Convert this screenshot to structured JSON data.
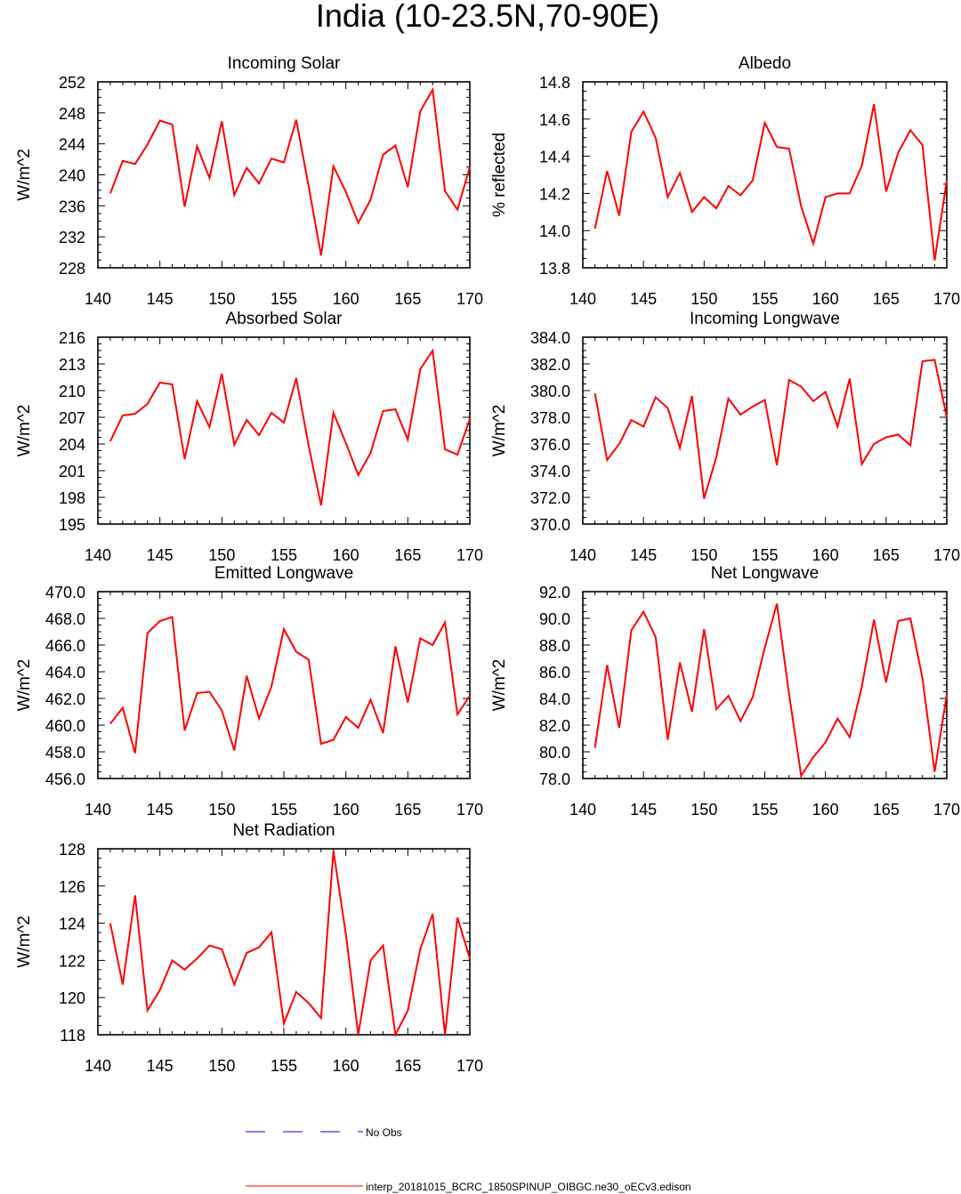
{
  "figure_title": "India (10-23.5N,70-90E)",
  "legend": {
    "obs_label": "No Obs",
    "obs_color": "#0000cc",
    "model_label": "interp_20181015_BCRC_1850SPINUP_OIBGC.ne30_oECv3.edison",
    "model_color": "#ff0000"
  },
  "chart_data": [
    {
      "type": "line",
      "title": "Incoming Solar",
      "ylabel": "W/m^2",
      "xlim": [
        140,
        170
      ],
      "ylim": [
        228,
        252
      ],
      "xticks": [
        "140",
        "145",
        "150",
        "155",
        "160",
        "165",
        "170"
      ],
      "yticks": [
        "228",
        "232",
        "236",
        "240",
        "244",
        "248",
        "252"
      ],
      "x": [
        141,
        142,
        143,
        144,
        145,
        146,
        147,
        148,
        149,
        150,
        151,
        152,
        153,
        154,
        155,
        156,
        157,
        158,
        159,
        160,
        161,
        162,
        163,
        164,
        165,
        166,
        167,
        168,
        169,
        170
      ],
      "y": [
        237.6,
        241.8,
        241.4,
        243.9,
        247.0,
        246.5,
        235.9,
        243.7,
        239.6,
        246.9,
        237.4,
        240.9,
        238.9,
        242.1,
        241.6,
        247.1,
        238.5,
        229.6,
        241.1,
        237.8,
        233.8,
        236.8,
        242.6,
        243.8,
        238.4,
        248.2,
        251.0,
        237.9,
        235.5,
        241.0
      ],
      "series_color": "#ff0000"
    },
    {
      "type": "line",
      "title": "Albedo",
      "ylabel": "% reflected",
      "xlim": [
        140,
        170
      ],
      "ylim": [
        13.8,
        14.8
      ],
      "xticks": [
        "140",
        "145",
        "150",
        "155",
        "160",
        "165",
        "170"
      ],
      "yticks": [
        "13.8",
        "14.0",
        "14.2",
        "14.4",
        "14.6",
        "14.8"
      ],
      "x": [
        141,
        142,
        143,
        144,
        145,
        146,
        147,
        148,
        149,
        150,
        151,
        152,
        153,
        154,
        155,
        156,
        157,
        158,
        159,
        160,
        161,
        162,
        163,
        164,
        165,
        166,
        167,
        168,
        169,
        170
      ],
      "y": [
        14.01,
        14.32,
        14.08,
        14.53,
        14.64,
        14.5,
        14.18,
        14.31,
        14.1,
        14.18,
        14.12,
        14.24,
        14.19,
        14.27,
        14.58,
        14.45,
        14.44,
        14.13,
        13.93,
        14.18,
        14.2,
        14.2,
        14.35,
        14.68,
        14.21,
        14.42,
        14.54,
        14.46,
        13.84,
        14.27
      ],
      "series_color": "#ff0000"
    },
    {
      "type": "line",
      "title": "Absorbed Solar",
      "ylabel": "W/m^2",
      "xlim": [
        140,
        170
      ],
      "ylim": [
        195,
        216
      ],
      "xticks": [
        "140",
        "145",
        "150",
        "155",
        "160",
        "165",
        "170"
      ],
      "yticks": [
        "195",
        "198",
        "201",
        "204",
        "207",
        "210",
        "213",
        "216"
      ],
      "x": [
        141,
        142,
        143,
        144,
        145,
        146,
        147,
        148,
        149,
        150,
        151,
        152,
        153,
        154,
        155,
        156,
        157,
        158,
        159,
        160,
        161,
        162,
        163,
        164,
        165,
        166,
        167,
        168,
        169,
        170
      ],
      "y": [
        204.3,
        207.2,
        207.4,
        208.5,
        210.9,
        210.7,
        202.3,
        208.8,
        205.9,
        211.9,
        203.9,
        206.7,
        205.0,
        207.5,
        206.4,
        211.4,
        203.8,
        197.1,
        207.5,
        204.1,
        200.5,
        203.0,
        207.7,
        207.9,
        204.5,
        212.4,
        214.5,
        203.4,
        202.8,
        206.8
      ],
      "series_color": "#ff0000"
    },
    {
      "type": "line",
      "title": "Incoming Longwave",
      "ylabel": "W/m^2",
      "xlim": [
        140,
        170
      ],
      "ylim": [
        370.0,
        384.0
      ],
      "xticks": [
        "140",
        "145",
        "150",
        "155",
        "160",
        "165",
        "170"
      ],
      "yticks": [
        "370.0",
        "372.0",
        "374.0",
        "376.0",
        "378.0",
        "380.0",
        "382.0",
        "384.0"
      ],
      "x": [
        141,
        142,
        143,
        144,
        145,
        146,
        147,
        148,
        149,
        150,
        151,
        152,
        153,
        154,
        155,
        156,
        157,
        158,
        159,
        160,
        161,
        162,
        163,
        164,
        165,
        166,
        167,
        168,
        169,
        170
      ],
      "y": [
        379.8,
        374.8,
        376.0,
        377.8,
        377.3,
        379.5,
        378.7,
        375.7,
        379.6,
        371.9,
        375.0,
        379.4,
        378.2,
        378.8,
        379.3,
        374.4,
        380.8,
        380.3,
        379.2,
        379.9,
        377.3,
        380.9,
        374.5,
        376.0,
        376.5,
        376.7,
        375.9,
        382.2,
        382.3,
        378.0
      ],
      "series_color": "#ff0000"
    },
    {
      "type": "line",
      "title": "Emitted Longwave",
      "ylabel": "W/m^2",
      "xlim": [
        140,
        170
      ],
      "ylim": [
        456.0,
        470.0
      ],
      "xticks": [
        "140",
        "145",
        "150",
        "155",
        "160",
        "165",
        "170"
      ],
      "yticks": [
        "456.0",
        "458.0",
        "460.0",
        "462.0",
        "464.0",
        "466.0",
        "468.0",
        "470.0"
      ],
      "x": [
        141,
        142,
        143,
        144,
        145,
        146,
        147,
        148,
        149,
        150,
        151,
        152,
        153,
        154,
        155,
        156,
        157,
        158,
        159,
        160,
        161,
        162,
        163,
        164,
        165,
        166,
        167,
        168,
        169,
        170
      ],
      "y": [
        460.1,
        461.3,
        457.9,
        466.9,
        467.8,
        468.1,
        459.6,
        462.4,
        462.5,
        461.1,
        458.1,
        463.7,
        460.5,
        462.9,
        467.2,
        465.5,
        464.9,
        458.6,
        458.9,
        460.6,
        459.8,
        461.9,
        459.4,
        465.9,
        461.7,
        466.5,
        466.0,
        467.7,
        460.8,
        462.2
      ],
      "series_color": "#ff0000"
    },
    {
      "type": "line",
      "title": "Net Longwave",
      "ylabel": "W/m^2",
      "xlim": [
        140,
        170
      ],
      "ylim": [
        78.0,
        92.0
      ],
      "xticks": [
        "140",
        "145",
        "150",
        "155",
        "160",
        "165",
        "170"
      ],
      "yticks": [
        "78.0",
        "80.0",
        "82.0",
        "84.0",
        "86.0",
        "88.0",
        "90.0",
        "92.0"
      ],
      "x": [
        141,
        142,
        143,
        144,
        145,
        146,
        147,
        148,
        149,
        150,
        151,
        152,
        153,
        154,
        155,
        156,
        157,
        158,
        159,
        160,
        161,
        162,
        163,
        164,
        165,
        166,
        167,
        168,
        169,
        170
      ],
      "y": [
        80.3,
        86.5,
        81.8,
        89.1,
        90.5,
        88.6,
        80.9,
        86.7,
        83.0,
        89.2,
        83.2,
        84.2,
        82.3,
        84.1,
        87.8,
        91.1,
        84.3,
        78.2,
        79.6,
        80.7,
        82.5,
        81.1,
        84.9,
        89.9,
        85.2,
        89.8,
        90.0,
        85.5,
        78.5,
        84.3
      ],
      "series_color": "#ff0000"
    },
    {
      "type": "line",
      "title": "Net Radiation",
      "ylabel": "W/m^2",
      "xlim": [
        140,
        170
      ],
      "ylim": [
        118,
        128
      ],
      "xticks": [
        "140",
        "145",
        "150",
        "155",
        "160",
        "165",
        "170"
      ],
      "yticks": [
        "118",
        "120",
        "122",
        "124",
        "126",
        "128"
      ],
      "x": [
        141,
        142,
        143,
        144,
        145,
        146,
        147,
        148,
        149,
        150,
        151,
        152,
        153,
        154,
        155,
        156,
        157,
        158,
        159,
        160,
        161,
        162,
        163,
        164,
        165,
        166,
        167,
        168,
        169,
        170
      ],
      "y": [
        124.0,
        120.7,
        125.5,
        119.3,
        120.4,
        122.0,
        121.5,
        122.1,
        122.8,
        122.6,
        120.7,
        122.4,
        122.7,
        123.5,
        118.6,
        120.3,
        119.7,
        118.9,
        127.9,
        123.4,
        118.0,
        122.0,
        122.8,
        118.0,
        119.3,
        122.6,
        124.5,
        118.0,
        124.3,
        122.1
      ],
      "series_color": "#ff0000"
    }
  ]
}
